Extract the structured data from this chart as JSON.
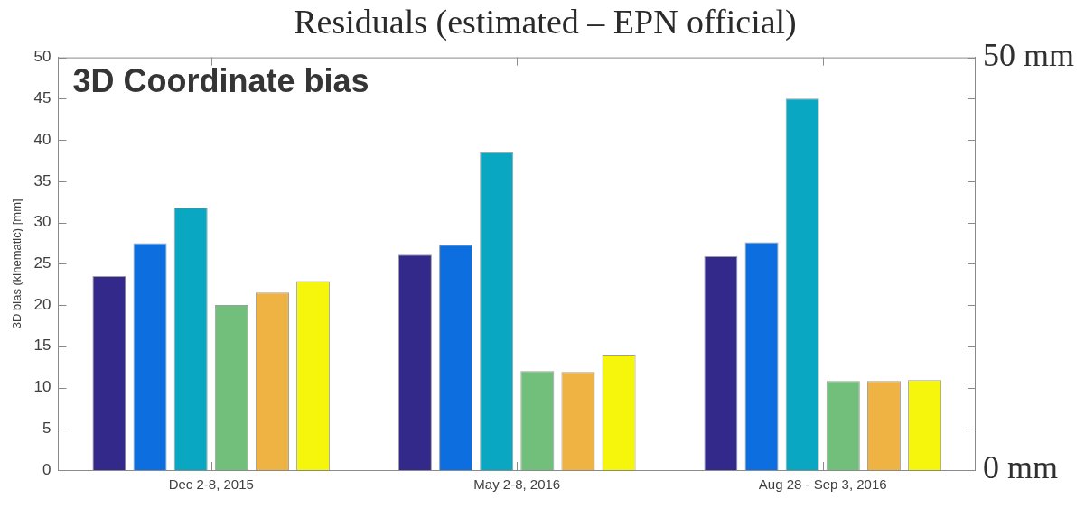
{
  "chart_data": {
    "type": "bar",
    "title": "Residuals (estimated – EPN official)",
    "subtitle": "3D Coordinate bias",
    "ylabel": "3D bias (kinematic) [mm]",
    "categories": [
      "Dec 2-8, 2015",
      "May 2-8, 2016",
      "Aug 28 - Sep 3, 2016"
    ],
    "series": [
      {
        "color": "#33298a",
        "values": [
          23.5,
          26.1,
          25.9
        ]
      },
      {
        "color": "#0d6fdf",
        "values": [
          27.5,
          27.3,
          27.6
        ]
      },
      {
        "color": "#0aa7c3",
        "values": [
          31.8,
          38.5,
          45.0
        ]
      },
      {
        "color": "#71bf7a",
        "values": [
          20.0,
          12.0,
          10.8
        ]
      },
      {
        "color": "#efb343",
        "values": [
          21.5,
          11.9,
          10.8
        ]
      },
      {
        "color": "#f6f60d",
        "values": [
          22.9,
          14.0,
          10.9
        ]
      }
    ],
    "ylim": [
      0,
      50
    ],
    "yticks": [
      0,
      5,
      10,
      15,
      20,
      25,
      30,
      35,
      40,
      45,
      50
    ],
    "y2lim": [
      0,
      50
    ],
    "y2ticks": [
      {
        "value": 0,
        "label": "0 mm"
      },
      {
        "value": 5,
        "label": null
      },
      {
        "value": 10,
        "label": null
      },
      {
        "value": 15,
        "label": null
      },
      {
        "value": 20,
        "label": null
      },
      {
        "value": 25,
        "label": null
      },
      {
        "value": 30,
        "label": null
      },
      {
        "value": 35,
        "label": null
      },
      {
        "value": 40,
        "label": null
      },
      {
        "value": 45,
        "label": null
      },
      {
        "value": 50,
        "label": "50 mm"
      }
    ]
  }
}
